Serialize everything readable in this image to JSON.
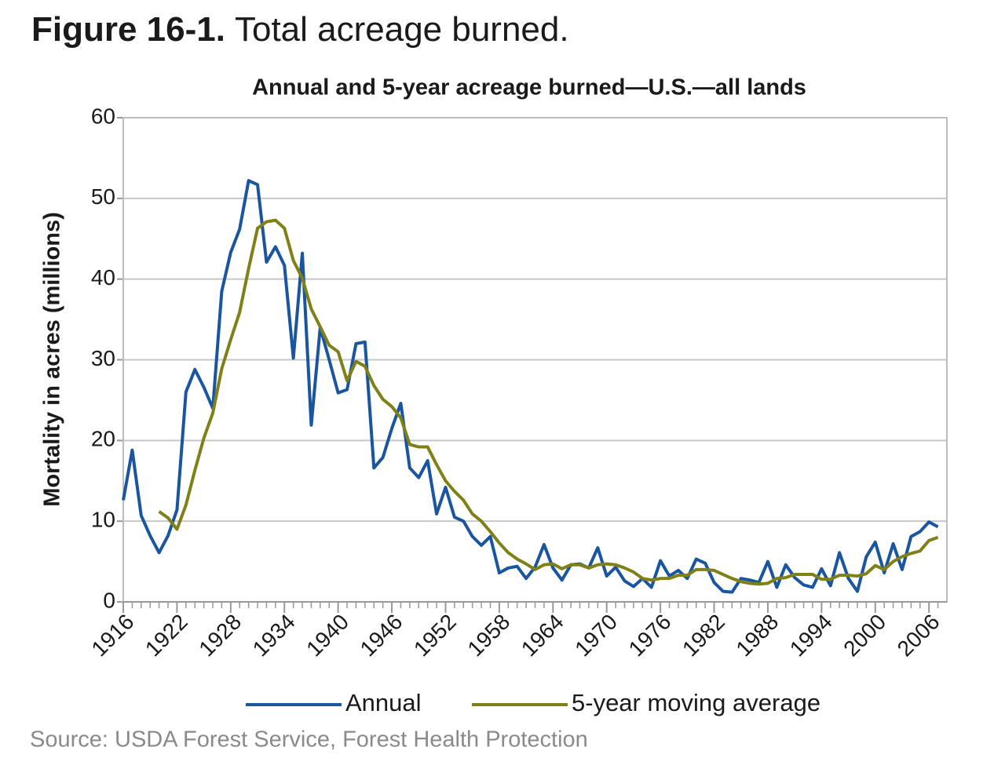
{
  "header": {
    "figure_label": "Figure 16-1.",
    "figure_title": "Total acreage burned."
  },
  "chart_data": {
    "type": "line",
    "title": "Annual and 5-year acreage burned—U.S.—all lands",
    "y_label": "Mortality in acres (millions)",
    "x": [
      1916,
      1917,
      1918,
      1919,
      1920,
      1921,
      1922,
      1923,
      1924,
      1925,
      1926,
      1927,
      1928,
      1929,
      1930,
      1931,
      1932,
      1933,
      1934,
      1935,
      1936,
      1937,
      1938,
      1939,
      1940,
      1941,
      1942,
      1943,
      1944,
      1945,
      1946,
      1947,
      1948,
      1949,
      1950,
      1951,
      1952,
      1953,
      1954,
      1955,
      1956,
      1957,
      1958,
      1959,
      1960,
      1961,
      1962,
      1963,
      1964,
      1965,
      1966,
      1967,
      1968,
      1969,
      1970,
      1971,
      1972,
      1973,
      1974,
      1975,
      1976,
      1977,
      1978,
      1979,
      1980,
      1981,
      1982,
      1983,
      1984,
      1985,
      1986,
      1987,
      1988,
      1989,
      1990,
      1991,
      1992,
      1993,
      1994,
      1995,
      1996,
      1997,
      1998,
      1999,
      2000,
      2001,
      2002,
      2003,
      2004,
      2005,
      2006,
      2007
    ],
    "series": [
      {
        "name": "Annual",
        "color": "#1a56a0",
        "values": [
          12.6,
          18.8,
          10.7,
          8.2,
          6.1,
          8.2,
          11.4,
          26.0,
          28.8,
          26.6,
          24.0,
          38.5,
          43.3,
          46.2,
          52.2,
          51.7,
          42.1,
          44.0,
          41.7,
          30.2,
          43.2,
          21.9,
          34.0,
          30.0,
          25.9,
          26.3,
          32.0,
          32.2,
          16.6,
          17.9,
          21.5,
          24.6,
          16.6,
          15.4,
          17.5,
          10.9,
          14.2,
          10.5,
          10.0,
          8.1,
          7.0,
          8.1,
          3.6,
          4.2,
          4.4,
          2.9,
          4.3,
          7.1,
          4.2,
          2.7,
          4.6,
          4.7,
          4.2,
          6.7,
          3.2,
          4.3,
          2.6,
          1.9,
          2.9,
          1.8,
          5.1,
          3.2,
          3.9,
          2.9,
          5.3,
          4.8,
          2.4,
          1.3,
          1.2,
          2.9,
          2.7,
          2.4,
          5.0,
          1.8,
          4.6,
          3.0,
          2.1,
          1.8,
          4.1,
          2.0,
          6.1,
          2.9,
          1.3,
          5.6,
          7.4,
          3.6,
          7.2,
          4.0,
          8.1,
          8.7,
          9.9,
          9.3
        ]
      },
      {
        "name": "5-year moving average",
        "color": "#808019",
        "values": [
          null,
          null,
          null,
          null,
          11.2,
          10.4,
          9.0,
          12.0,
          16.3,
          20.3,
          23.4,
          28.9,
          32.5,
          35.9,
          41.3,
          46.3,
          47.1,
          47.3,
          46.3,
          42.3,
          40.1,
          36.3,
          34.1,
          31.8,
          31.0,
          27.4,
          29.8,
          29.2,
          26.8,
          25.1,
          24.2,
          22.8,
          19.5,
          19.2,
          19.2,
          17.0,
          15.0,
          13.7,
          12.6,
          10.9,
          10.0,
          8.7,
          7.3,
          6.1,
          5.3,
          4.7,
          4.0,
          4.6,
          4.7,
          4.1,
          4.6,
          4.6,
          4.2,
          4.6,
          4.7,
          4.6,
          4.2,
          3.7,
          2.9,
          2.7,
          2.9,
          2.9,
          3.3,
          3.3,
          4.0,
          4.0,
          3.9,
          3.4,
          2.9,
          2.5,
          2.3,
          2.2,
          2.3,
          2.9,
          3.0,
          3.4,
          3.4,
          3.4,
          2.8,
          2.8,
          3.3,
          3.3,
          3.2,
          3.5,
          4.5,
          4.0,
          5.0,
          5.6,
          6.0,
          6.3,
          7.6,
          8.0
        ]
      }
    ],
    "xlim": [
      1916,
      2008
    ],
    "xticks": [
      1916,
      1922,
      1928,
      1934,
      1940,
      1946,
      1952,
      1958,
      1964,
      1970,
      1976,
      1982,
      1988,
      1994,
      2000,
      2006
    ],
    "ylim": [
      0,
      60
    ],
    "yticks": [
      0,
      10,
      20,
      30,
      40,
      50,
      60
    ],
    "grid": true,
    "legend": "bottom"
  },
  "source": "Source: USDA Forest Service, Forest Health Protection"
}
